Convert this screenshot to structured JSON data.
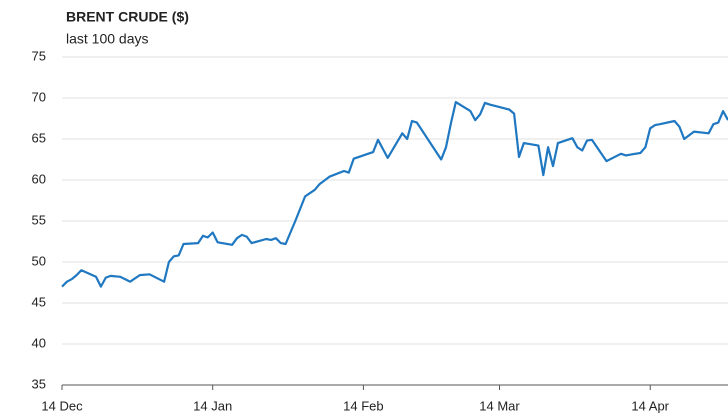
{
  "chart_data": {
    "type": "line",
    "title": "BRENT CRUDE ($)",
    "subtitle": "last 100 days",
    "x": [
      "14 Dec",
      "15 Dec",
      "16 Dec",
      "17 Dec",
      "18 Dec",
      "21 Dec",
      "22 Dec",
      "23 Dec",
      "24 Dec",
      "26 Dec",
      "28 Dec",
      "30 Dec",
      "1 Jan",
      "4 Jan",
      "5 Jan",
      "6 Jan",
      "7 Jan",
      "8 Jan",
      "11 Jan",
      "12 Jan",
      "13 Jan",
      "14 Jan",
      "15 Jan",
      "18 Jan",
      "19 Jan",
      "20 Jan",
      "21 Jan",
      "22 Jan",
      "25 Jan",
      "26 Jan",
      "27 Jan",
      "28 Jan",
      "29 Jan",
      "31 Jan",
      "2 Feb",
      "4 Feb",
      "5 Feb",
      "7 Feb",
      "10 Feb",
      "11 Feb",
      "12 Feb",
      "16 Feb",
      "17 Feb",
      "19 Feb",
      "22 Feb",
      "23 Feb",
      "24 Feb",
      "25 Feb",
      "2 Mar",
      "3 Mar",
      "4 Mar",
      "5 Mar",
      "8 Mar",
      "9 Mar",
      "10 Mar",
      "11 Mar",
      "12 Mar",
      "16 Mar",
      "17 Mar",
      "18 Mar",
      "19 Mar",
      "22 Mar",
      "23 Mar",
      "24 Mar",
      "25 Mar",
      "26 Mar",
      "29 Mar",
      "30 Mar",
      "31 Mar",
      "1 Apr",
      "2 Apr",
      "5 Apr",
      "7 Apr",
      "8 Apr",
      "9 Apr",
      "12 Apr",
      "13 Apr",
      "14 Apr",
      "15 Apr",
      "16 Apr",
      "19 Apr",
      "20 Apr",
      "21 Apr",
      "23 Apr",
      "26 Apr",
      "27 Apr",
      "28 Apr",
      "29 Apr",
      "30 Apr"
    ],
    "series": [
      {
        "name": "Brent crude",
        "color": "#1f78c1",
        "values": [
          47.0,
          47.6,
          47.9,
          48.4,
          49.0,
          48.2,
          47.0,
          48.1,
          48.3,
          48.2,
          47.6,
          48.4,
          48.5,
          47.6,
          50.0,
          50.7,
          50.8,
          52.2,
          52.3,
          53.2,
          53.0,
          53.6,
          52.4,
          52.1,
          52.9,
          53.3,
          53.1,
          52.3,
          52.8,
          52.7,
          52.9,
          52.3,
          52.2,
          55.0,
          58.0,
          58.8,
          59.5,
          60.4,
          61.1,
          60.9,
          62.6,
          63.4,
          64.9,
          62.7,
          65.7,
          65.0,
          67.2,
          67.0,
          62.5,
          64.0,
          66.9,
          69.5,
          68.4,
          67.3,
          68.0,
          69.4,
          69.2,
          68.6,
          68.1,
          62.8,
          64.5,
          64.2,
          60.6,
          64.0,
          61.7,
          64.5,
          65.1,
          64.0,
          63.6,
          64.8,
          64.9,
          62.3,
          62.9,
          63.2,
          63.0,
          63.3,
          64.0,
          66.3,
          66.7,
          66.8,
          67.2,
          66.5,
          65.0,
          65.9,
          65.7,
          66.8,
          67.0,
          68.4,
          67.3
        ]
      }
    ],
    "xlim": [
      "14 Dec",
      "30 Apr"
    ],
    "xticks": [
      "14 Dec",
      "14 Jan",
      "14 Feb",
      "14 Mar",
      "14 Apr"
    ],
    "ylim": [
      35,
      75
    ],
    "yticks": [
      35,
      40,
      45,
      50,
      55,
      60,
      65,
      70,
      75
    ],
    "grid": true
  }
}
